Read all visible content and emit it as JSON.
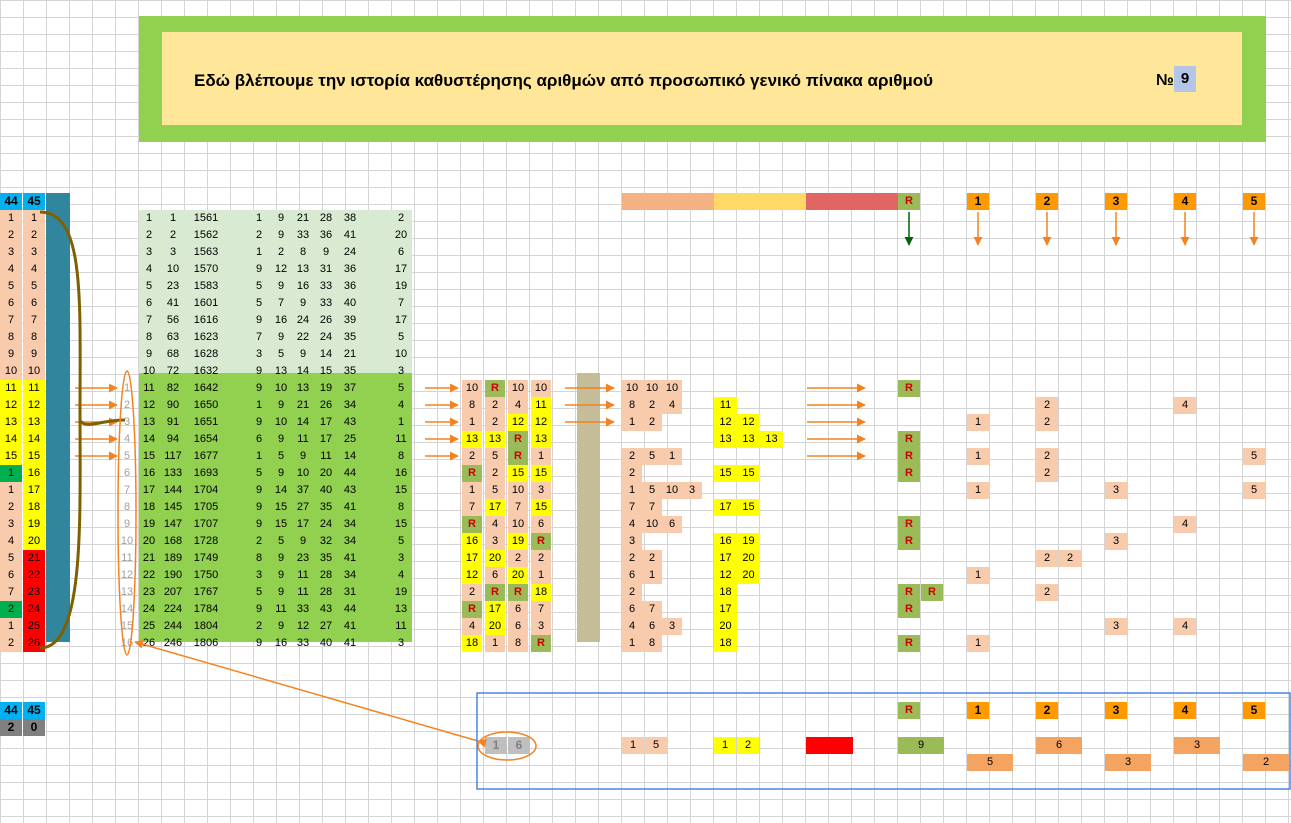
{
  "banner": {
    "title": "Εδώ βλέπουμε την ιστορία καθυστέρησης αριθμών από προσωπικό γενικό πίνακα αριθμού",
    "no_label": "№",
    "no_value": "9"
  },
  "left_header": {
    "a": "44",
    "b": "45"
  },
  "left_col_a": [
    {
      "v": "1",
      "bg": "#f8cbad"
    },
    {
      "v": "2",
      "bg": "#f8cbad"
    },
    {
      "v": "3",
      "bg": "#f8cbad"
    },
    {
      "v": "4",
      "bg": "#f8cbad"
    },
    {
      "v": "5",
      "bg": "#f8cbad"
    },
    {
      "v": "6",
      "bg": "#f8cbad"
    },
    {
      "v": "7",
      "bg": "#f8cbad"
    },
    {
      "v": "8",
      "bg": "#f8cbad"
    },
    {
      "v": "9",
      "bg": "#f8cbad"
    },
    {
      "v": "10",
      "bg": "#f8cbad"
    },
    {
      "v": "11",
      "bg": "#ffff00"
    },
    {
      "v": "12",
      "bg": "#ffff00"
    },
    {
      "v": "13",
      "bg": "#ffff00"
    },
    {
      "v": "14",
      "bg": "#ffff00"
    },
    {
      "v": "15",
      "bg": "#ffff00"
    },
    {
      "v": "1",
      "bg": "#00b050"
    },
    {
      "v": "1",
      "bg": "#f8cbad"
    },
    {
      "v": "2",
      "bg": "#f8cbad"
    },
    {
      "v": "3",
      "bg": "#f8cbad"
    },
    {
      "v": "4",
      "bg": "#f8cbad"
    },
    {
      "v": "5",
      "bg": "#f8cbad"
    },
    {
      "v": "6",
      "bg": "#f8cbad"
    },
    {
      "v": "7",
      "bg": "#f8cbad"
    },
    {
      "v": "2",
      "bg": "#00b050"
    },
    {
      "v": "1",
      "bg": "#f8cbad"
    },
    {
      "v": "2",
      "bg": "#f8cbad"
    }
  ],
  "left_col_b": [
    {
      "v": "1",
      "bg": "#f8cbad"
    },
    {
      "v": "2",
      "bg": "#f8cbad"
    },
    {
      "v": "3",
      "bg": "#f8cbad"
    },
    {
      "v": "4",
      "bg": "#f8cbad"
    },
    {
      "v": "5",
      "bg": "#f8cbad"
    },
    {
      "v": "6",
      "bg": "#f8cbad"
    },
    {
      "v": "7",
      "bg": "#f8cbad"
    },
    {
      "v": "8",
      "bg": "#f8cbad"
    },
    {
      "v": "9",
      "bg": "#f8cbad"
    },
    {
      "v": "10",
      "bg": "#f8cbad"
    },
    {
      "v": "11",
      "bg": "#ffff00"
    },
    {
      "v": "12",
      "bg": "#ffff00"
    },
    {
      "v": "13",
      "bg": "#ffff00"
    },
    {
      "v": "14",
      "bg": "#ffff00"
    },
    {
      "v": "15",
      "bg": "#ffff00"
    },
    {
      "v": "16",
      "bg": "#ffff00"
    },
    {
      "v": "17",
      "bg": "#ffff00"
    },
    {
      "v": "18",
      "bg": "#ffff00"
    },
    {
      "v": "19",
      "bg": "#ffff00"
    },
    {
      "v": "20",
      "bg": "#ffff00"
    },
    {
      "v": "21",
      "bg": "#ff0000"
    },
    {
      "v": "22",
      "bg": "#ff0000"
    },
    {
      "v": "23",
      "bg": "#ff0000"
    },
    {
      "v": "24",
      "bg": "#ff0000"
    },
    {
      "v": "25",
      "bg": "#ff0000"
    },
    {
      "v": "26",
      "bg": "#ff0000"
    }
  ],
  "idx_labels": [
    "1",
    "2",
    "3",
    "4",
    "5",
    "6",
    "7",
    "8",
    "9",
    "10",
    "11",
    "12",
    "13",
    "14",
    "15",
    "16"
  ],
  "draws": [
    [
      "1",
      "1",
      "1561",
      "1",
      "9",
      "21",
      "28",
      "38",
      "2"
    ],
    [
      "2",
      "2",
      "1562",
      "2",
      "9",
      "33",
      "36",
      "41",
      "20"
    ],
    [
      "3",
      "3",
      "1563",
      "1",
      "2",
      "8",
      "9",
      "24",
      "6"
    ],
    [
      "4",
      "10",
      "1570",
      "9",
      "12",
      "13",
      "31",
      "36",
      "17"
    ],
    [
      "5",
      "23",
      "1583",
      "5",
      "9",
      "16",
      "33",
      "36",
      "19"
    ],
    [
      "6",
      "41",
      "1601",
      "5",
      "7",
      "9",
      "33",
      "40",
      "7"
    ],
    [
      "7",
      "56",
      "1616",
      "9",
      "16",
      "24",
      "26",
      "39",
      "17"
    ],
    [
      "8",
      "63",
      "1623",
      "7",
      "9",
      "22",
      "24",
      "35",
      "5"
    ],
    [
      "9",
      "68",
      "1628",
      "3",
      "5",
      "9",
      "14",
      "21",
      "10"
    ],
    [
      "10",
      "72",
      "1632",
      "9",
      "13",
      "14",
      "15",
      "35",
      "3"
    ],
    [
      "11",
      "82",
      "1642",
      "9",
      "10",
      "13",
      "19",
      "37",
      "5"
    ],
    [
      "12",
      "90",
      "1650",
      "1",
      "9",
      "21",
      "26",
      "34",
      "4"
    ],
    [
      "13",
      "91",
      "1651",
      "9",
      "10",
      "14",
      "17",
      "43",
      "1"
    ],
    [
      "14",
      "94",
      "1654",
      "6",
      "9",
      "11",
      "17",
      "25",
      "11"
    ],
    [
      "15",
      "117",
      "1677",
      "1",
      "5",
      "9",
      "11",
      "14",
      "8"
    ],
    [
      "16",
      "133",
      "1693",
      "5",
      "9",
      "10",
      "20",
      "44",
      "16"
    ],
    [
      "17",
      "144",
      "1704",
      "9",
      "14",
      "37",
      "40",
      "43",
      "15"
    ],
    [
      "18",
      "145",
      "1705",
      "9",
      "15",
      "27",
      "35",
      "41",
      "8"
    ],
    [
      "19",
      "147",
      "1707",
      "9",
      "15",
      "17",
      "24",
      "34",
      "15"
    ],
    [
      "20",
      "168",
      "1728",
      "2",
      "5",
      "9",
      "32",
      "34",
      "5"
    ],
    [
      "21",
      "189",
      "1749",
      "8",
      "9",
      "23",
      "35",
      "41",
      "3"
    ],
    [
      "22",
      "190",
      "1750",
      "3",
      "9",
      "11",
      "28",
      "34",
      "4"
    ],
    [
      "23",
      "207",
      "1767",
      "5",
      "9",
      "11",
      "28",
      "31",
      "19"
    ],
    [
      "24",
      "224",
      "1784",
      "9",
      "11",
      "33",
      "43",
      "44",
      "13"
    ],
    [
      "25",
      "244",
      "1804",
      "2",
      "9",
      "12",
      "27",
      "41",
      "11"
    ],
    [
      "26",
      "246",
      "1806",
      "9",
      "16",
      "33",
      "40",
      "41",
      "3"
    ]
  ],
  "delay4": [
    [
      {
        "v": "10",
        "bg": "#f8cbad"
      },
      {
        "v": "R",
        "bg": "#9bbb59",
        "r": true
      },
      {
        "v": "10",
        "bg": "#f8cbad"
      },
      {
        "v": "10",
        "bg": "#f8cbad"
      }
    ],
    [
      {
        "v": "8",
        "bg": "#f8cbad"
      },
      {
        "v": "2",
        "bg": "#f8cbad"
      },
      {
        "v": "4",
        "bg": "#f8cbad"
      },
      {
        "v": "11",
        "bg": "#ffff00"
      }
    ],
    [
      {
        "v": "1",
        "bg": "#f8cbad"
      },
      {
        "v": "2",
        "bg": "#f8cbad"
      },
      {
        "v": "12",
        "bg": "#ffff00"
      },
      {
        "v": "12",
        "bg": "#ffff00"
      }
    ],
    [
      {
        "v": "13",
        "bg": "#ffff00"
      },
      {
        "v": "13",
        "bg": "#ffff00"
      },
      {
        "v": "R",
        "bg": "#9bbb59",
        "r": true
      },
      {
        "v": "13",
        "bg": "#ffff00"
      }
    ],
    [
      {
        "v": "2",
        "bg": "#f8cbad"
      },
      {
        "v": "5",
        "bg": "#f8cbad"
      },
      {
        "v": "R",
        "bg": "#9bbb59",
        "r": true
      },
      {
        "v": "1",
        "bg": "#f8cbad"
      }
    ],
    [
      {
        "v": "R",
        "bg": "#9bbb59",
        "r": true
      },
      {
        "v": "2",
        "bg": "#f8cbad"
      },
      {
        "v": "15",
        "bg": "#ffff00"
      },
      {
        "v": "15",
        "bg": "#ffff00"
      }
    ],
    [
      {
        "v": "1",
        "bg": "#f8cbad"
      },
      {
        "v": "5",
        "bg": "#f8cbad"
      },
      {
        "v": "10",
        "bg": "#f8cbad"
      },
      {
        "v": "3",
        "bg": "#f8cbad"
      }
    ],
    [
      {
        "v": "7",
        "bg": "#f8cbad"
      },
      {
        "v": "17",
        "bg": "#ffff00"
      },
      {
        "v": "7",
        "bg": "#f8cbad"
      },
      {
        "v": "15",
        "bg": "#ffff00"
      }
    ],
    [
      {
        "v": "R",
        "bg": "#9bbb59",
        "r": true
      },
      {
        "v": "4",
        "bg": "#f8cbad"
      },
      {
        "v": "10",
        "bg": "#f8cbad"
      },
      {
        "v": "6",
        "bg": "#f8cbad"
      }
    ],
    [
      {
        "v": "16",
        "bg": "#ffff00"
      },
      {
        "v": "3",
        "bg": "#f8cbad"
      },
      {
        "v": "19",
        "bg": "#ffff00"
      },
      {
        "v": "R",
        "bg": "#9bbb59",
        "r": true
      }
    ],
    [
      {
        "v": "17",
        "bg": "#ffff00"
      },
      {
        "v": "20",
        "bg": "#ffff00"
      },
      {
        "v": "2",
        "bg": "#f8cbad"
      },
      {
        "v": "2",
        "bg": "#f8cbad"
      }
    ],
    [
      {
        "v": "12",
        "bg": "#ffff00"
      },
      {
        "v": "6",
        "bg": "#f8cbad"
      },
      {
        "v": "20",
        "bg": "#ffff00"
      },
      {
        "v": "1",
        "bg": "#f8cbad"
      }
    ],
    [
      {
        "v": "2",
        "bg": "#f8cbad"
      },
      {
        "v": "R",
        "bg": "#9bbb59",
        "r": true
      },
      {
        "v": "R",
        "bg": "#9bbb59",
        "r": true
      },
      {
        "v": "18",
        "bg": "#ffff00"
      }
    ],
    [
      {
        "v": "R",
        "bg": "#9bbb59",
        "r": true
      },
      {
        "v": "17",
        "bg": "#ffff00"
      },
      {
        "v": "6",
        "bg": "#f8cbad"
      },
      {
        "v": "7",
        "bg": "#f8cbad"
      }
    ],
    [
      {
        "v": "4",
        "bg": "#f8cbad"
      },
      {
        "v": "20",
        "bg": "#ffff00"
      },
      {
        "v": "6",
        "bg": "#f8cbad"
      },
      {
        "v": "3",
        "bg": "#f8cbad"
      }
    ],
    [
      {
        "v": "18",
        "bg": "#ffff00"
      },
      {
        "v": "1",
        "bg": "#f8cbad"
      },
      {
        "v": "8",
        "bg": "#f8cbad"
      },
      {
        "v": "R",
        "bg": "#9bbb59",
        "r": true
      }
    ]
  ],
  "low_group": [
    [
      "10",
      "10",
      "10"
    ],
    [
      "8",
      "2",
      "4"
    ],
    [
      "1",
      "2"
    ],
    [],
    [
      "2",
      "5",
      "1"
    ],
    [
      "2"
    ],
    [
      "1",
      "5",
      "10",
      "3"
    ],
    [
      "7",
      "7"
    ],
    [
      "4",
      "10",
      "6"
    ],
    [
      "3"
    ],
    [
      "2",
      "2"
    ],
    [
      "6",
      "1"
    ],
    [
      "2"
    ],
    [
      "6",
      "7"
    ],
    [
      "4",
      "6",
      "3"
    ],
    [
      "1",
      "8"
    ]
  ],
  "mid_group": [
    [],
    [
      "11"
    ],
    [
      "12",
      "12"
    ],
    [
      "13",
      "13",
      "13"
    ],
    [],
    [
      "15",
      "15"
    ],
    [],
    [
      "17",
      "15"
    ],
    [],
    [
      "16",
      "19"
    ],
    [
      "17",
      "20"
    ],
    [
      "12",
      "20"
    ],
    [
      "18"
    ],
    [
      "17"
    ],
    [
      "20"
    ],
    [
      "18"
    ]
  ],
  "right_cols": {
    "R": [
      "R",
      "",
      "",
      "R",
      "R",
      "R",
      "",
      "",
      "R",
      "R",
      "",
      "",
      "R R",
      "R",
      "",
      "R"
    ],
    "1": [
      "",
      "",
      "1",
      "",
      "1",
      "",
      "1",
      "",
      "",
      "",
      "",
      "1",
      "",
      "",
      "",
      "1"
    ],
    "2": [
      "",
      "2",
      "2",
      "",
      "2",
      "2",
      "",
      "",
      "",
      "",
      "2 2",
      "",
      "2",
      "",
      "",
      ""
    ],
    "3": [
      "",
      "",
      "",
      "",
      "",
      "",
      "3",
      "",
      "",
      "3",
      "",
      "",
      "",
      "",
      "3",
      ""
    ],
    "4": [
      "",
      "4",
      "",
      "",
      "",
      "",
      "",
      "",
      "4",
      "",
      "",
      "",
      "",
      "",
      "4",
      ""
    ],
    "5": [
      "",
      "",
      "",
      "",
      "5",
      "",
      "5",
      "",
      "",
      "",
      "",
      "",
      "",
      "",
      "",
      ""
    ]
  },
  "right_headers": [
    "R",
    "1",
    "2",
    "3",
    "4",
    "5"
  ],
  "bottom_left": {
    "h_a": "44",
    "h_b": "45",
    "v_a": "2",
    "v_b": "0"
  },
  "bottom_summary": {
    "circled": [
      "1",
      "6"
    ],
    "low": [
      "1",
      "5"
    ],
    "mid": [
      "1",
      "2"
    ],
    "r_val": "9",
    "row1": {
      "2": "6",
      "4": "3"
    },
    "row2": {
      "1": "5",
      "3": "3",
      "5": "2"
    }
  },
  "colors": {
    "orange": "#ff9900",
    "salmon": "#f8cbad",
    "yellow": "#ffff00",
    "olive": "#9bbb59",
    "green": "#92d050",
    "lightgreen": "#d8ead1",
    "teal": "#31859c",
    "red": "#ff0000",
    "arrow": "#f58220"
  }
}
